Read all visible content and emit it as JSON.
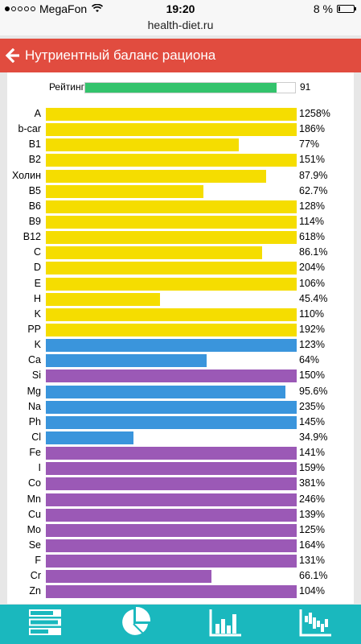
{
  "status": {
    "carrier": "MegaFon",
    "time": "19:20",
    "battery": "8 %",
    "battery_level_percent": 8,
    "signal_bars": 1
  },
  "url": "health-diet.ru",
  "header": {
    "title": "Нутриентный баланс рациона",
    "back_icon": "back-arrow-icon"
  },
  "rating": {
    "label": "Рейтинг",
    "value": "91",
    "fraction": 0.91,
    "color": "#33c36c"
  },
  "colors": {
    "vitamin": "#f5dd00",
    "macro": "#3a95dc",
    "micro": "#9b59b6"
  },
  "nutrients": [
    {
      "name": "A",
      "value": "1258%",
      "fraction": 1.0,
      "group": "vitamin"
    },
    {
      "name": "b-car",
      "value": "186%",
      "fraction": 1.0,
      "group": "vitamin"
    },
    {
      "name": "B1",
      "value": "77%",
      "fraction": 0.77,
      "group": "vitamin"
    },
    {
      "name": "B2",
      "value": "151%",
      "fraction": 1.0,
      "group": "vitamin"
    },
    {
      "name": "Холин",
      "value": "87.9%",
      "fraction": 0.879,
      "group": "vitamin"
    },
    {
      "name": "B5",
      "value": "62.7%",
      "fraction": 0.627,
      "group": "vitamin"
    },
    {
      "name": "B6",
      "value": "128%",
      "fraction": 1.0,
      "group": "vitamin"
    },
    {
      "name": "B9",
      "value": "114%",
      "fraction": 1.0,
      "group": "vitamin"
    },
    {
      "name": "B12",
      "value": "618%",
      "fraction": 1.0,
      "group": "vitamin"
    },
    {
      "name": "C",
      "value": "86.1%",
      "fraction": 0.861,
      "group": "vitamin"
    },
    {
      "name": "D",
      "value": "204%",
      "fraction": 1.0,
      "group": "vitamin"
    },
    {
      "name": "E",
      "value": "106%",
      "fraction": 1.0,
      "group": "vitamin"
    },
    {
      "name": "H",
      "value": "45.4%",
      "fraction": 0.454,
      "group": "vitamin"
    },
    {
      "name": "K",
      "value": "110%",
      "fraction": 1.0,
      "group": "vitamin"
    },
    {
      "name": "PP",
      "value": "192%",
      "fraction": 1.0,
      "group": "vitamin"
    },
    {
      "name": "K",
      "value": "123%",
      "fraction": 1.0,
      "group": "macro"
    },
    {
      "name": "Ca",
      "value": "64%",
      "fraction": 0.64,
      "group": "macro"
    },
    {
      "name": "Si",
      "value": "150%",
      "fraction": 1.0,
      "group": "micro"
    },
    {
      "name": "Mg",
      "value": "95.6%",
      "fraction": 0.956,
      "group": "macro"
    },
    {
      "name": "Na",
      "value": "235%",
      "fraction": 1.0,
      "group": "macro"
    },
    {
      "name": "Ph",
      "value": "145%",
      "fraction": 1.0,
      "group": "macro"
    },
    {
      "name": "Cl",
      "value": "34.9%",
      "fraction": 0.349,
      "group": "macro"
    },
    {
      "name": "Fe",
      "value": "141%",
      "fraction": 1.0,
      "group": "micro"
    },
    {
      "name": "I",
      "value": "159%",
      "fraction": 1.0,
      "group": "micro"
    },
    {
      "name": "Co",
      "value": "381%",
      "fraction": 1.0,
      "group": "micro"
    },
    {
      "name": "Mn",
      "value": "246%",
      "fraction": 1.0,
      "group": "micro"
    },
    {
      "name": "Cu",
      "value": "139%",
      "fraction": 1.0,
      "group": "micro"
    },
    {
      "name": "Mo",
      "value": "125%",
      "fraction": 1.0,
      "group": "micro"
    },
    {
      "name": "Se",
      "value": "164%",
      "fraction": 1.0,
      "group": "micro"
    },
    {
      "name": "F",
      "value": "131%",
      "fraction": 1.0,
      "group": "micro"
    },
    {
      "name": "Cr",
      "value": "66.1%",
      "fraction": 0.661,
      "group": "micro"
    },
    {
      "name": "Zn",
      "value": "104%",
      "fraction": 1.0,
      "group": "micro"
    }
  ],
  "tabs": [
    {
      "icon": "nutrient-bars-icon"
    },
    {
      "icon": "pie-chart-icon"
    },
    {
      "icon": "bar-chart-icon"
    },
    {
      "icon": "histogram-icon"
    }
  ],
  "accent": {
    "header": "#e14c3f",
    "bottombar": "#1ab8be"
  }
}
